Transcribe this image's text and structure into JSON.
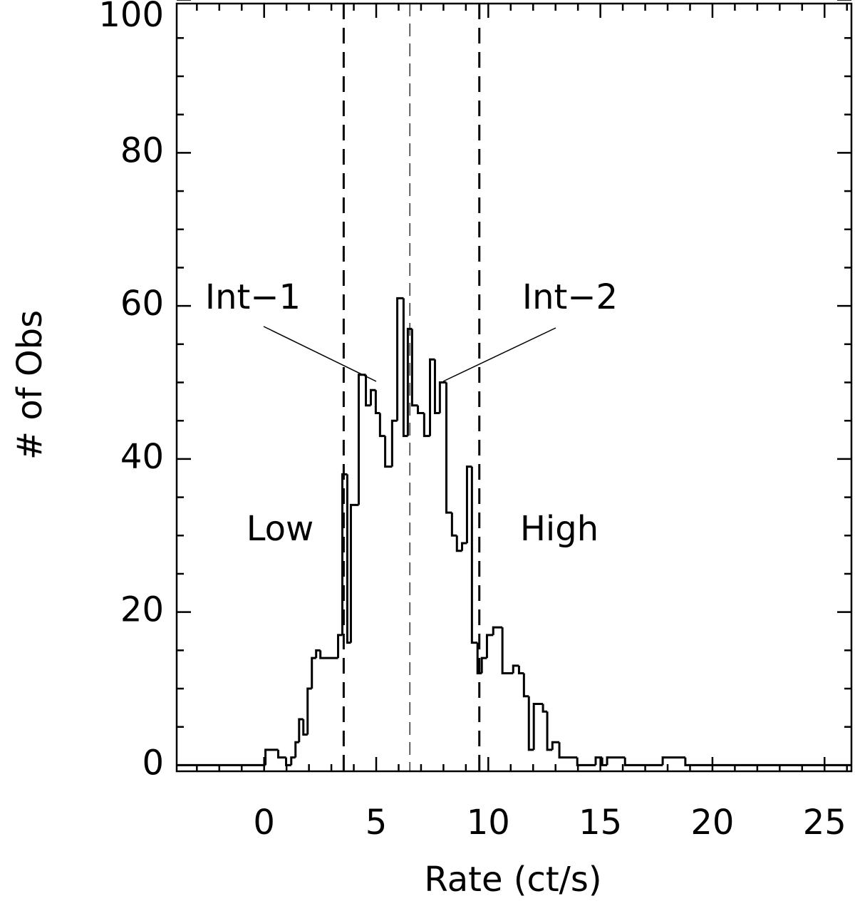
{
  "chart_data": {
    "type": "histogram",
    "xlabel": "Rate (ct/s)",
    "ylabel": "# of Obs",
    "bins": [
      -3.9,
      0.06,
      0.63,
      0.98,
      1.21,
      1.4,
      1.56,
      1.75,
      1.94,
      2.13,
      2.32,
      2.51,
      3.3,
      3.49,
      3.71,
      3.87,
      4.22,
      4.54,
      4.76,
      4.98,
      5.17,
      5.4,
      5.71,
      5.94,
      6.22,
      6.41,
      6.6,
      6.86,
      7.14,
      7.4,
      7.62,
      7.84,
      8.13,
      8.38,
      8.6,
      8.83,
      9.05,
      9.27,
      9.52,
      9.71,
      9.94,
      10.22,
      10.63,
      11.11,
      11.37,
      11.59,
      11.81,
      12.03,
      12.44,
      12.63,
      12.86,
      13.17,
      13.97,
      14.79,
      15.08,
      15.3,
      16.1,
      17.78,
      18.79,
      26.2
    ],
    "values": [
      0,
      2,
      1,
      0,
      1,
      3,
      6,
      4,
      10,
      14,
      15,
      14,
      17,
      38,
      16,
      34,
      51,
      47,
      49,
      46,
      43,
      39,
      45,
      61,
      43,
      57,
      47,
      46,
      43,
      53,
      46,
      50,
      33,
      30,
      28,
      29,
      39,
      16,
      12,
      14,
      17,
      18,
      12,
      13,
      12,
      9,
      2,
      8,
      7,
      2,
      3,
      1,
      0,
      1,
      0,
      1,
      0,
      1,
      0
    ],
    "color": "#000000",
    "xlim": [
      -3.9,
      26.2
    ],
    "ylim": [
      -0.8,
      99.5
    ],
    "xticks": [
      0,
      5,
      10,
      15,
      20,
      25
    ],
    "yticks": [
      0,
      20,
      40,
      60,
      80,
      100
    ],
    "x_minor_ticks": [
      -3,
      -2,
      -1,
      1,
      2,
      3,
      4,
      6,
      7,
      8,
      9,
      11,
      12,
      13,
      14,
      16,
      17,
      18,
      19,
      21,
      22,
      23,
      24,
      26
    ],
    "y_minor_ticks": [
      5,
      10,
      15,
      25,
      30,
      35,
      45,
      50,
      55,
      65,
      70,
      75,
      85,
      90,
      95
    ],
    "reference_lines": [
      {
        "x": 3.55,
        "weight": "bold"
      },
      {
        "x": 6.5,
        "weight": "thin"
      },
      {
        "x": 9.6,
        "weight": "bold"
      }
    ],
    "annotations": [
      "Int−1",
      "Int−2",
      "Low",
      "High"
    ]
  }
}
